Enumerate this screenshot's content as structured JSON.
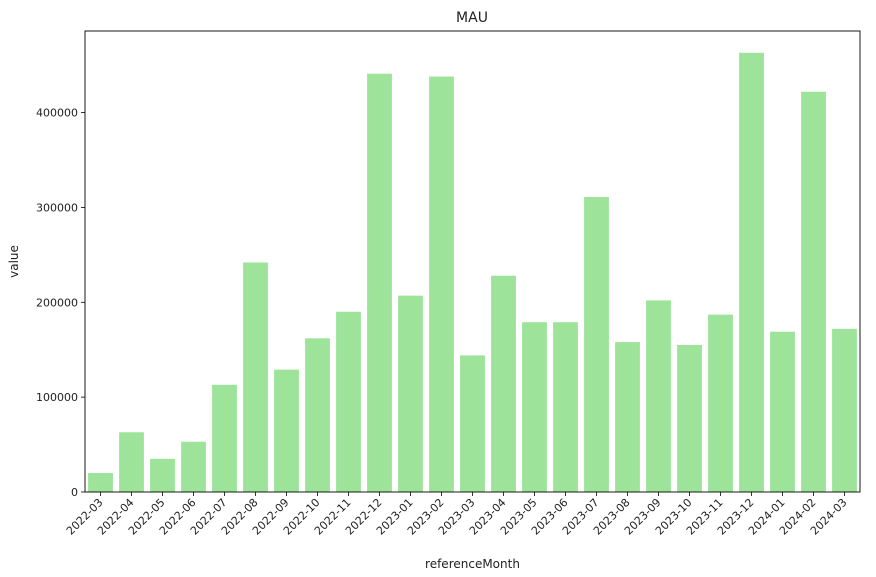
{
  "chart_data": {
    "type": "bar",
    "title": "MAU",
    "xlabel": "referenceMonth",
    "ylabel": "value",
    "categories": [
      "2022-03",
      "2022-04",
      "2022-05",
      "2022-06",
      "2022-07",
      "2022-08",
      "2022-09",
      "2022-10",
      "2022-11",
      "2022-12",
      "2023-01",
      "2023-02",
      "2023-03",
      "2023-04",
      "2023-05",
      "2023-06",
      "2023-07",
      "2023-08",
      "2023-09",
      "2023-10",
      "2023-11",
      "2023-12",
      "2024-01",
      "2024-02",
      "2024-03"
    ],
    "values": [
      20000,
      63000,
      35000,
      53000,
      113000,
      242000,
      129000,
      162000,
      190000,
      441000,
      207000,
      438000,
      144000,
      228000,
      179000,
      179000,
      311000,
      158000,
      202000,
      155000,
      187000,
      463000,
      169000,
      422000,
      172000
    ],
    "yticks": [
      0,
      100000,
      200000,
      300000,
      400000
    ],
    "ylim": [
      0,
      486000
    ],
    "bar_color": "#9de39a",
    "grid": false
  }
}
